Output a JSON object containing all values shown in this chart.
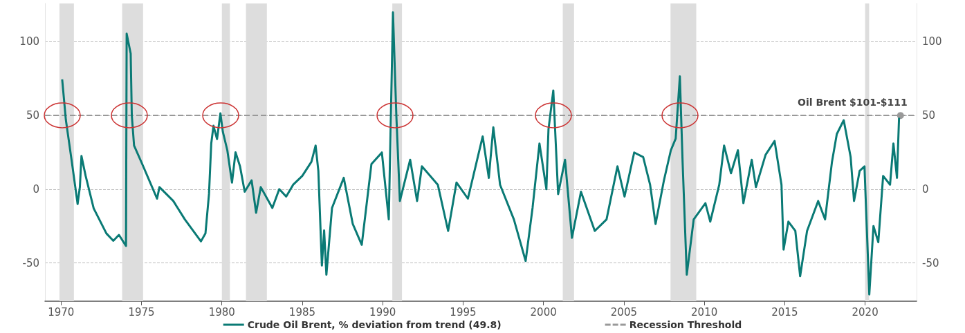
{
  "chart_data": {
    "type": "line",
    "x": [
      1970.07,
      1970.3,
      1970.67,
      1971.03,
      1971.17,
      1971.27,
      1971.53,
      1972.03,
      1972.82,
      1973.25,
      1973.6,
      1974.04,
      1974.08,
      1974.33,
      1974.4,
      1974.54,
      1975.11,
      1975.97,
      1976.12,
      1976.98,
      1977.7,
      1978.7,
      1978.98,
      1979.2,
      1979.34,
      1979.48,
      1979.7,
      1979.91,
      1980.06,
      1980.34,
      1980.63,
      1980.85,
      1981.13,
      1981.42,
      1981.85,
      1982.13,
      1982.42,
      1983.14,
      1983.57,
      1984.0,
      1984.43,
      1985.0,
      1985.57,
      1985.83,
      1986.0,
      1986.22,
      1986.36,
      1986.5,
      1986.85,
      1987.58,
      1988.14,
      1988.7,
      1989.3,
      1989.95,
      1990.38,
      1990.64,
      1990.85,
      1991.07,
      1991.71,
      1992.14,
      1992.44,
      1993.43,
      1994.07,
      1994.59,
      1995.3,
      1996.22,
      1996.6,
      1996.88,
      1997.3,
      1998.16,
      1998.89,
      1999.32,
      1999.75,
      2000.18,
      2000.31,
      2000.61,
      2000.91,
      2001.34,
      2001.77,
      2002.33,
      2003.19,
      2003.92,
      2004.6,
      2005.04,
      2005.64,
      2006.2,
      2006.63,
      2006.97,
      2007.49,
      2007.92,
      2008.22,
      2008.48,
      2008.65,
      2008.91,
      2009.34,
      2010.07,
      2010.37,
      2010.93,
      2011.23,
      2011.66,
      2012.09,
      2012.43,
      2012.95,
      2013.21,
      2013.81,
      2014.37,
      2014.8,
      2014.93,
      2015.23,
      2015.66,
      2015.96,
      2016.39,
      2017.08,
      2017.51,
      2017.94,
      2018.24,
      2018.67,
      2019.1,
      2019.31,
      2019.66,
      2019.96,
      2020.26,
      2020.52,
      2020.82,
      2021.12,
      2021.55,
      2021.76,
      2021.98,
      2022.11
    ],
    "series": [
      {
        "name": "Crude Oil Brent, % deviation from trend (49.8)",
        "color": "#0a7a75",
        "values": [
          74.5,
          47,
          18.6,
          -10,
          1.4,
          22.5,
          9,
          -13,
          -30,
          -35,
          -31,
          -38.5,
          105.5,
          92,
          50,
          29.6,
          15.5,
          -6.4,
          1.4,
          -8,
          -20.5,
          -35.4,
          -30,
          -3.3,
          31,
          43,
          34,
          51.5,
          39,
          26.4,
          4.5,
          25,
          15.5,
          -1.7,
          6,
          -16,
          1.4,
          -12.7,
          0,
          -5,
          3,
          9,
          18.6,
          29.6,
          12.4,
          -51.8,
          -28,
          -58,
          -12.7,
          7.7,
          -23.6,
          -37.7,
          17,
          24.9,
          -20.5,
          120,
          50,
          -8,
          20,
          -8,
          15.5,
          3,
          -28.3,
          4.5,
          -6.4,
          35.8,
          7.7,
          42,
          3,
          -20.5,
          -48.7,
          -12.7,
          31,
          0,
          40.5,
          67,
          -3.3,
          20,
          -33,
          -1.7,
          -28.3,
          -20.5,
          15.5,
          -5,
          24.9,
          21.8,
          3,
          -23.6,
          6,
          26.4,
          34.3,
          76.5,
          18.6,
          -58,
          -20.5,
          -9.5,
          -22,
          3,
          29.6,
          10.8,
          26.4,
          -9.5,
          20,
          1.4,
          23.3,
          32.7,
          3,
          -41,
          -22,
          -28.3,
          -59,
          -28.3,
          -8,
          -20.5,
          18.6,
          37.4,
          46.8,
          21.8,
          -8,
          12.4,
          15.5,
          -71.4,
          -25,
          -36,
          9,
          3,
          31,
          7.7,
          48.4
        ]
      }
    ],
    "xlim": [
      1969,
      2023.2
    ],
    "xticks": [
      1970,
      1975,
      1980,
      1985,
      1990,
      1995,
      2000,
      2005,
      2010,
      2015,
      2020
    ],
    "ylim": [
      -76,
      126
    ],
    "yticks": [
      -50,
      0,
      50,
      100
    ],
    "y2lim": [
      -76,
      126
    ],
    "y2ticks": [
      -50,
      0,
      50,
      100
    ],
    "grid": "y",
    "legend": "bottom",
    "marker": "none",
    "line_style": "solid",
    "ref_lines": [
      {
        "axis": "y",
        "value": 50,
        "label": "Recession Threshold",
        "color": "#999999",
        "line_style": "dashed"
      }
    ],
    "bands": [
      {
        "axis": "x",
        "from": 1969.9,
        "to": 1970.8,
        "color": "#dddddd"
      },
      {
        "axis": "x",
        "from": 1973.8,
        "to": 1975.1,
        "color": "#dddddd"
      },
      {
        "axis": "x",
        "from": 1980.0,
        "to": 1980.5,
        "color": "#dddddd"
      },
      {
        "axis": "x",
        "from": 1981.5,
        "to": 1982.8,
        "color": "#dddddd"
      },
      {
        "axis": "x",
        "from": 1990.6,
        "to": 1991.2,
        "color": "#dddddd"
      },
      {
        "axis": "x",
        "from": 2001.2,
        "to": 2001.9,
        "color": "#dddddd"
      },
      {
        "axis": "x",
        "from": 2007.9,
        "to": 2009.5,
        "color": "#dddddd"
      },
      {
        "axis": "x",
        "from": 2020.0,
        "to": 2020.25,
        "color": "#dddddd"
      }
    ],
    "annotations": [
      {
        "text": "Oil Brent $101-$111",
        "x": 2022.2,
        "y": 50
      }
    ]
  }
}
